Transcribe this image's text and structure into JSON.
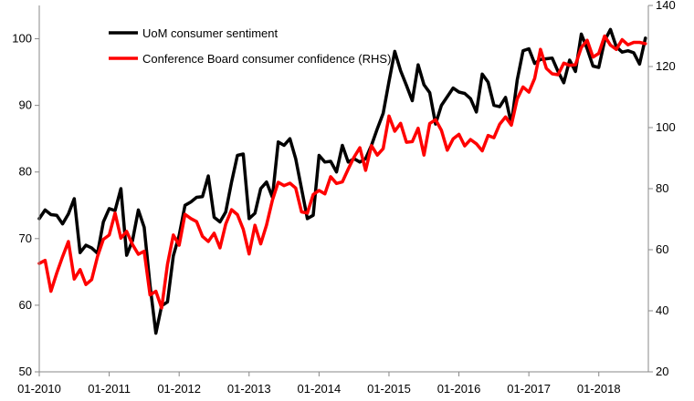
{
  "chart_data": {
    "type": "line",
    "x_axis": {
      "type": "date",
      "tick_labels": [
        "01-2010",
        "01-2011",
        "01-2012",
        "01-2013",
        "01-2014",
        "01-2015",
        "01-2016",
        "01-2017",
        "01-2018"
      ]
    },
    "y_left": {
      "range": [
        50,
        105
      ],
      "ticks": [
        50,
        60,
        70,
        80,
        90,
        100
      ]
    },
    "y_right": {
      "range": [
        20,
        140
      ],
      "ticks": [
        20,
        40,
        60,
        80,
        100,
        120,
        140
      ]
    },
    "legend": {
      "placement": "top-left"
    },
    "grid": false,
    "series": [
      {
        "name": "UoM consumer sentiment",
        "axis": "left",
        "color": "#000000",
        "x": [
          "2010-01",
          "2010-02",
          "2010-03",
          "2010-04",
          "2010-05",
          "2010-06",
          "2010-07",
          "2010-08",
          "2010-09",
          "2010-10",
          "2010-11",
          "2010-12",
          "2011-01",
          "2011-02",
          "2011-03",
          "2011-04",
          "2011-05",
          "2011-06",
          "2011-07",
          "2011-08",
          "2011-09",
          "2011-10",
          "2011-11",
          "2011-12",
          "2012-01",
          "2012-02",
          "2012-03",
          "2012-04",
          "2012-05",
          "2012-06",
          "2012-07",
          "2012-08",
          "2012-09",
          "2012-10",
          "2012-11",
          "2012-12",
          "2013-01",
          "2013-02",
          "2013-03",
          "2013-04",
          "2013-05",
          "2013-06",
          "2013-07",
          "2013-08",
          "2013-09",
          "2013-10",
          "2013-11",
          "2013-12",
          "2014-01",
          "2014-02",
          "2014-03",
          "2014-04",
          "2014-05",
          "2014-06",
          "2014-07",
          "2014-08",
          "2014-09",
          "2014-10",
          "2014-11",
          "2014-12",
          "2015-01",
          "2015-02",
          "2015-03",
          "2015-04",
          "2015-05",
          "2015-06",
          "2015-07",
          "2015-08",
          "2015-09",
          "2015-10",
          "2015-11",
          "2015-12",
          "2016-01",
          "2016-02",
          "2016-03",
          "2016-04",
          "2016-05",
          "2016-06",
          "2016-07",
          "2016-08",
          "2016-09",
          "2016-10",
          "2016-11",
          "2016-12",
          "2017-01",
          "2017-02",
          "2017-03",
          "2017-04",
          "2017-05",
          "2017-06",
          "2017-07",
          "2017-08",
          "2017-09",
          "2017-10",
          "2017-11",
          "2017-12",
          "2018-01",
          "2018-02",
          "2018-03",
          "2018-04",
          "2018-05",
          "2018-06",
          "2018-07",
          "2018-08",
          "2018-09"
        ],
        "values": [
          73.0,
          74.3,
          73.6,
          73.5,
          72.2,
          73.7,
          76.0,
          67.9,
          69.0,
          68.6,
          67.8,
          72.5,
          74.5,
          74.2,
          77.5,
          67.5,
          69.7,
          74.3,
          71.7,
          63.0,
          55.8,
          59.9,
          60.5,
          67.4,
          70.5,
          75.0,
          75.5,
          76.2,
          76.3,
          79.4,
          73.2,
          72.5,
          74.0,
          78.5,
          82.5,
          82.7,
          73.0,
          73.8,
          77.5,
          78.5,
          76.2,
          84.5,
          84.0,
          85.0,
          82.0,
          77.5,
          73.0,
          73.5,
          82.5,
          81.5,
          81.6,
          80.0,
          84.0,
          81.5,
          82.0,
          81.5,
          82.0,
          84.0,
          86.5,
          88.8,
          93.6,
          98.1,
          95.2,
          93.0,
          90.7,
          96.1,
          93.1,
          91.9,
          87.2,
          90.0,
          91.3,
          92.6,
          92.0,
          91.8,
          91.0,
          89.0,
          94.7,
          93.5,
          90.0,
          89.8,
          91.2,
          87.2,
          93.8,
          98.2,
          98.5,
          96.3,
          96.9,
          97.0,
          97.1,
          95.1,
          93.4,
          96.8,
          95.1,
          100.7,
          98.5,
          95.9,
          95.7,
          99.7,
          101.4,
          98.8,
          98.0,
          98.2,
          97.9,
          96.2,
          100.1
        ]
      },
      {
        "name": "Conference Board consumer confidence (RHS)",
        "axis": "right",
        "color": "#ff0000",
        "x": [
          "2010-01",
          "2010-02",
          "2010-03",
          "2010-04",
          "2010-05",
          "2010-06",
          "2010-07",
          "2010-08",
          "2010-09",
          "2010-10",
          "2010-11",
          "2010-12",
          "2011-01",
          "2011-02",
          "2011-03",
          "2011-04",
          "2011-05",
          "2011-06",
          "2011-07",
          "2011-08",
          "2011-09",
          "2011-10",
          "2011-11",
          "2011-12",
          "2012-01",
          "2012-02",
          "2012-03",
          "2012-04",
          "2012-05",
          "2012-06",
          "2012-07",
          "2012-08",
          "2012-09",
          "2012-10",
          "2012-11",
          "2012-12",
          "2013-01",
          "2013-02",
          "2013-03",
          "2013-04",
          "2013-05",
          "2013-06",
          "2013-07",
          "2013-08",
          "2013-09",
          "2013-10",
          "2013-11",
          "2013-12",
          "2014-01",
          "2014-02",
          "2014-03",
          "2014-04",
          "2014-05",
          "2014-06",
          "2014-07",
          "2014-08",
          "2014-09",
          "2014-10",
          "2014-11",
          "2014-12",
          "2015-01",
          "2015-02",
          "2015-03",
          "2015-04",
          "2015-05",
          "2015-06",
          "2015-07",
          "2015-08",
          "2015-09",
          "2015-10",
          "2015-11",
          "2015-12",
          "2016-01",
          "2016-02",
          "2016-03",
          "2016-04",
          "2016-05",
          "2016-06",
          "2016-07",
          "2016-08",
          "2016-09",
          "2016-10",
          "2016-11",
          "2016-12",
          "2017-01",
          "2017-02",
          "2017-03",
          "2017-04",
          "2017-05",
          "2017-06",
          "2017-07",
          "2017-08",
          "2017-09",
          "2017-10",
          "2017-11",
          "2017-12",
          "2018-01",
          "2018-02",
          "2018-03",
          "2018-04",
          "2018-05",
          "2018-06",
          "2018-07",
          "2018-08",
          "2018-09"
        ],
        "values": [
          55.5,
          56.5,
          46.4,
          52.3,
          57.7,
          62.7,
          50.4,
          53.5,
          48.6,
          50.2,
          57.8,
          63.4,
          64.8,
          72.0,
          63.8,
          66.0,
          61.7,
          58.5,
          59.5,
          45.2,
          46.4,
          40.9,
          55.2,
          64.8,
          61.5,
          71.6,
          70.2,
          69.2,
          64.4,
          62.7,
          65.4,
          60.6,
          68.4,
          73.1,
          71.5,
          66.7,
          58.6,
          68.0,
          61.9,
          68.1,
          76.2,
          82.1,
          81.0,
          81.8,
          80.2,
          72.4,
          72.0,
          78.1,
          79.4,
          78.3,
          83.9,
          81.7,
          82.2,
          86.4,
          90.3,
          93.4,
          86.0,
          94.1,
          91.0,
          93.1,
          103.8,
          98.8,
          101.4,
          95.2,
          95.4,
          99.8,
          91.0,
          101.3,
          102.6,
          99.1,
          92.6,
          96.3,
          97.8,
          94.0,
          96.1,
          94.7,
          92.4,
          97.4,
          96.7,
          101.1,
          103.5,
          100.8,
          109.4,
          113.3,
          111.6,
          116.1,
          125.6,
          119.4,
          117.6,
          117.3,
          121.1,
          120.4,
          120.6,
          126.2,
          128.6,
          123.1,
          124.3,
          130.0,
          127.0,
          125.6,
          128.8,
          127.1,
          127.9,
          127.9,
          127.5
        ]
      }
    ]
  }
}
